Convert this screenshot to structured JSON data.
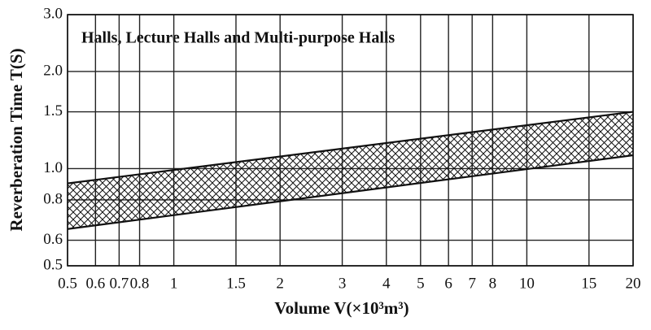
{
  "chart_data": {
    "type": "band",
    "title": "Halls, Lecture Halls and Multi-purpose Halls",
    "x_label": "Volume V(×10³m³)",
    "y_label": "Reverberation Time T(S)",
    "x": [
      0.5,
      20
    ],
    "series": [
      {
        "name": "upper",
        "color": "#111111",
        "values": [
          0.9,
          1.5
        ]
      },
      {
        "name": "lower",
        "color": "#111111",
        "values": [
          0.65,
          1.1
        ]
      }
    ],
    "xscale": "log",
    "yscale": "log",
    "xlim": [
      0.5,
      20
    ],
    "xticks": [
      0.5,
      0.6,
      0.7,
      0.8,
      1,
      1.5,
      2,
      3,
      4,
      5,
      6,
      7,
      8,
      10,
      15,
      20
    ],
    "ylim": [
      0.5,
      3
    ],
    "yticks": [
      0.5,
      0.6,
      0.8,
      {
        "value": 1,
        "label": "1.0"
      },
      1.5,
      {
        "value": 2,
        "label": "2.0"
      },
      {
        "value": 3,
        "label": "3.0"
      }
    ],
    "grid": true
  }
}
